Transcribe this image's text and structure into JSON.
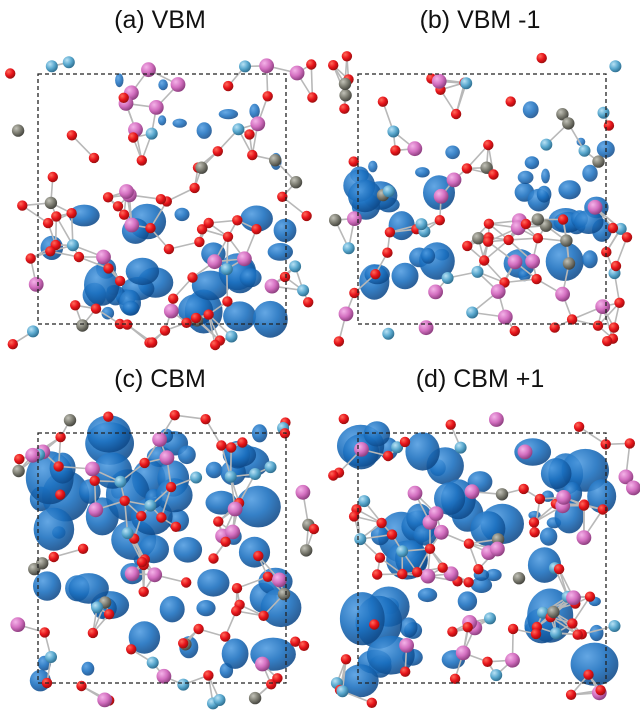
{
  "figure": {
    "panels": [
      {
        "id": "a",
        "title": "(a) VBM"
      },
      {
        "id": "b",
        "title": "(b) VBM -1"
      },
      {
        "id": "c",
        "title": "(c) CBM"
      },
      {
        "id": "d",
        "title": "(d) CBM +1"
      }
    ],
    "colors": {
      "oxygen": "#e8141b",
      "pink_atom": "#d36fc0",
      "light_blue_atom": "#5aa9cf",
      "gray_atom": "#7d7d72",
      "isosurface": "#1a6fbf",
      "bond": "#b8b8b8",
      "cell_border": "#222222"
    }
  }
}
